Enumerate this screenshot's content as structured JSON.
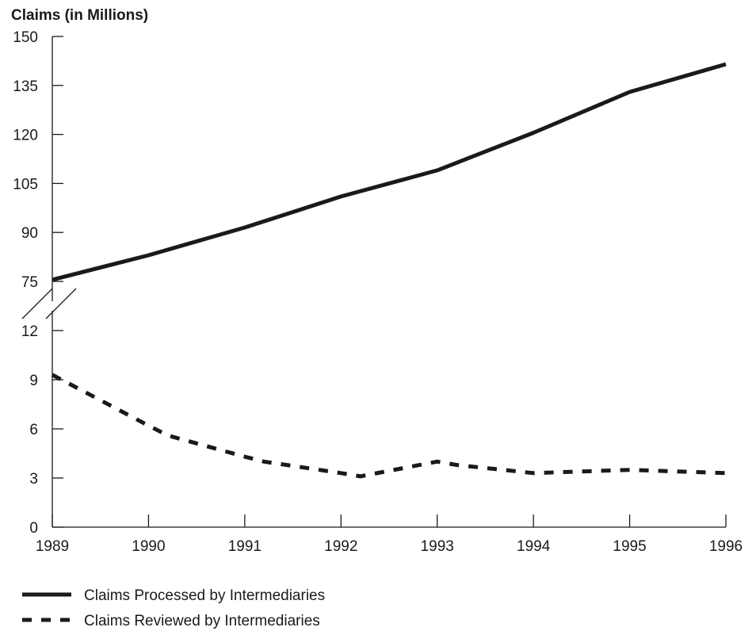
{
  "chart_data": {
    "type": "line",
    "ylabel": "Claims (in Millions)",
    "title": "",
    "xlabel": "",
    "x": [
      "1989",
      "1990",
      "1991",
      "1992",
      "1993",
      "1994",
      "1995",
      "1996"
    ],
    "axis_break": true,
    "upper_panel": {
      "ylim": [
        75,
        150
      ],
      "yticks": [
        "150",
        "135",
        "120",
        "105",
        "90",
        "75"
      ]
    },
    "lower_panel": {
      "ylim": [
        0,
        12
      ],
      "yticks": [
        "12",
        "9",
        "6",
        "3",
        "0"
      ]
    },
    "series": [
      {
        "name": "Claims Processed by Intermediaries",
        "style": "solid",
        "panel": "upper",
        "x": [
          1989,
          1990,
          1991,
          1992,
          1993,
          1994,
          1995,
          1996
        ],
        "values": [
          75.5,
          83,
          91.5,
          101,
          109,
          120.5,
          133,
          141.5
        ]
      },
      {
        "name": "Claims Reviewed by Intermediaries",
        "style": "dashed",
        "panel": "lower",
        "x": [
          1989,
          1990,
          1990.2,
          1991,
          1991.2,
          1992,
          1992.2,
          1993,
          1993.2,
          1994,
          1995,
          1996
        ],
        "values": [
          9.3,
          6.2,
          5.6,
          4.3,
          4.0,
          3.3,
          3.1,
          4.0,
          3.8,
          3.3,
          3.5,
          3.3
        ]
      }
    ],
    "legend_position": "bottom-left",
    "grid": false,
    "color": "#1a1a1a"
  }
}
